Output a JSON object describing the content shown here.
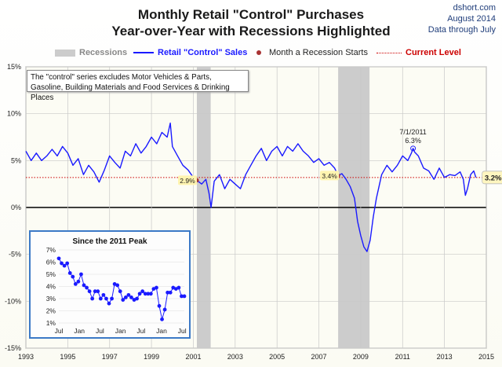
{
  "header": {
    "title_line1": "Monthly Retail \"Control\" Purchases",
    "title_line2": "Year-over-Year with Recessions Highlighted",
    "credit_site": "dshort.com",
    "credit_date": "August 2014",
    "credit_through": "Data through July"
  },
  "legend": {
    "recessions": "Recessions",
    "series": "Retail \"Control\" Sales",
    "recession_start": "Month a Recession Starts",
    "current_level": "Current Level"
  },
  "note": "The \"control\" series excludes Motor Vehicles & Parts, Gasoline, Building Materials and Food Services & Drinking Places",
  "inset_title": "Since the 2011 Peak",
  "colors": {
    "series": "#1a1aff",
    "recession": "#cccccc",
    "current_level": "#cc0000",
    "recession_marker": "#a83232",
    "inset_border": "#3b79c7"
  },
  "chart_data": [
    {
      "type": "line",
      "title": "Monthly Retail \"Control\" Purchases Year-over-Year with Recessions Highlighted",
      "xlim": [
        1993,
        2015
      ],
      "ylim": [
        -15,
        15
      ],
      "x_ticks": [
        "1993",
        "1995",
        "1997",
        "1999",
        "2001",
        "2003",
        "2005",
        "2007",
        "2009",
        "2011",
        "2013",
        "2015"
      ],
      "y_ticks": [
        "-15%",
        "-10%",
        "-5%",
        "0%",
        "5%",
        "10%",
        "15%"
      ],
      "grid": true,
      "recessions": [
        [
          2001.17,
          2001.83
        ],
        [
          2007.92,
          2009.42
        ]
      ],
      "current_level": 3.2,
      "series": [
        {
          "name": "Retail \"Control\" Sales",
          "points": [
            [
              1993.0,
              6.0
            ],
            [
              1993.25,
              5.0
            ],
            [
              1993.5,
              5.8
            ],
            [
              1993.75,
              5.0
            ],
            [
              1994.0,
              5.5
            ],
            [
              1994.25,
              6.2
            ],
            [
              1994.5,
              5.5
            ],
            [
              1994.75,
              6.5
            ],
            [
              1995.0,
              5.8
            ],
            [
              1995.25,
              4.5
            ],
            [
              1995.5,
              5.2
            ],
            [
              1995.75,
              3.5
            ],
            [
              1996.0,
              4.5
            ],
            [
              1996.25,
              3.8
            ],
            [
              1996.5,
              2.7
            ],
            [
              1996.75,
              4.0
            ],
            [
              1997.0,
              5.5
            ],
            [
              1997.25,
              4.8
            ],
            [
              1997.5,
              4.2
            ],
            [
              1997.75,
              6.0
            ],
            [
              1998.0,
              5.5
            ],
            [
              1998.25,
              6.8
            ],
            [
              1998.5,
              5.8
            ],
            [
              1998.75,
              6.5
            ],
            [
              1999.0,
              7.5
            ],
            [
              1999.25,
              6.8
            ],
            [
              1999.5,
              8.0
            ],
            [
              1999.75,
              7.5
            ],
            [
              1999.9,
              9.0
            ],
            [
              2000.0,
              6.5
            ],
            [
              2000.25,
              5.5
            ],
            [
              2000.5,
              4.5
            ],
            [
              2000.75,
              4.0
            ],
            [
              2001.0,
              3.2
            ],
            [
              2001.17,
              2.9
            ],
            [
              2001.4,
              2.5
            ],
            [
              2001.6,
              3.0
            ],
            [
              2001.75,
              1.5
            ],
            [
              2001.85,
              0.0
            ],
            [
              2002.0,
              2.8
            ],
            [
              2002.25,
              3.5
            ],
            [
              2002.5,
              2.0
            ],
            [
              2002.75,
              3.0
            ],
            [
              2003.0,
              2.5
            ],
            [
              2003.25,
              2.0
            ],
            [
              2003.5,
              3.5
            ],
            [
              2003.75,
              4.5
            ],
            [
              2004.0,
              5.5
            ],
            [
              2004.25,
              6.3
            ],
            [
              2004.5,
              5.0
            ],
            [
              2004.75,
              6.0
            ],
            [
              2005.0,
              6.5
            ],
            [
              2005.25,
              5.5
            ],
            [
              2005.5,
              6.5
            ],
            [
              2005.75,
              6.0
            ],
            [
              2006.0,
              6.8
            ],
            [
              2006.25,
              6.0
            ],
            [
              2006.5,
              5.5
            ],
            [
              2006.75,
              4.8
            ],
            [
              2007.0,
              5.2
            ],
            [
              2007.25,
              4.5
            ],
            [
              2007.5,
              4.8
            ],
            [
              2007.75,
              4.2
            ],
            [
              2007.92,
              3.4
            ],
            [
              2008.1,
              3.6
            ],
            [
              2008.3,
              3.0
            ],
            [
              2008.5,
              2.2
            ],
            [
              2008.7,
              1.0
            ],
            [
              2008.85,
              -1.5
            ],
            [
              2009.0,
              -3.0
            ],
            [
              2009.15,
              -4.2
            ],
            [
              2009.3,
              -4.7
            ],
            [
              2009.45,
              -3.5
            ],
            [
              2009.6,
              -1.0
            ],
            [
              2009.75,
              1.0
            ],
            [
              2009.9,
              2.5
            ],
            [
              2010.0,
              3.5
            ],
            [
              2010.25,
              4.5
            ],
            [
              2010.5,
              3.8
            ],
            [
              2010.75,
              4.5
            ],
            [
              2011.0,
              5.5
            ],
            [
              2011.25,
              5.0
            ],
            [
              2011.42,
              5.8
            ],
            [
              2011.5,
              6.3
            ],
            [
              2011.58,
              5.9
            ],
            [
              2011.75,
              5.5
            ],
            [
              2012.0,
              4.2
            ],
            [
              2012.25,
              3.9
            ],
            [
              2012.5,
              3.0
            ],
            [
              2012.75,
              4.2
            ],
            [
              2013.0,
              3.2
            ],
            [
              2013.25,
              3.5
            ],
            [
              2013.5,
              3.4
            ],
            [
              2013.75,
              3.8
            ],
            [
              2013.9,
              3.0
            ],
            [
              2014.0,
              1.3
            ],
            [
              2014.1,
              2.0
            ],
            [
              2014.25,
              3.5
            ],
            [
              2014.4,
              3.9
            ],
            [
              2014.5,
              3.2
            ]
          ]
        }
      ],
      "annotations": [
        {
          "x": 2001.17,
          "y": 2.9,
          "label": "2.9%"
        },
        {
          "x": 2007.92,
          "y": 3.4,
          "label": "3.4%"
        },
        {
          "x": 2011.5,
          "y": 6.3,
          "label": "7/1/2011"
        },
        {
          "x": 2011.5,
          "y": 6.3,
          "label": "6.3%"
        },
        {
          "x": 2014.5,
          "y": 3.2,
          "label": "3.2%"
        }
      ]
    },
    {
      "type": "line",
      "title": "Since the 2011 Peak",
      "ylim": [
        1,
        7
      ],
      "y_ticks": [
        "1%",
        "2%",
        "3%",
        "4%",
        "5%",
        "6%",
        "7%"
      ],
      "x_ticks": [
        "Jul",
        "Jan",
        "Jul",
        "Jan",
        "Jul",
        "Jan",
        "Jul"
      ],
      "series": [
        {
          "name": "Since the 2011 Peak",
          "values": [
            6.3,
            5.9,
            5.7,
            5.9,
            5.1,
            4.8,
            4.2,
            4.4,
            5.0,
            4.1,
            3.9,
            3.6,
            3.0,
            3.6,
            3.6,
            3.0,
            3.3,
            3.0,
            2.6,
            3.0,
            4.2,
            4.1,
            3.6,
            2.9,
            3.1,
            3.3,
            3.1,
            2.9,
            3.0,
            3.4,
            3.6,
            3.4,
            3.4,
            3.4,
            3.8,
            3.9,
            2.4,
            1.3,
            2.1,
            3.5,
            3.5,
            3.9,
            3.8,
            3.9,
            3.2,
            3.2
          ]
        }
      ]
    }
  ]
}
